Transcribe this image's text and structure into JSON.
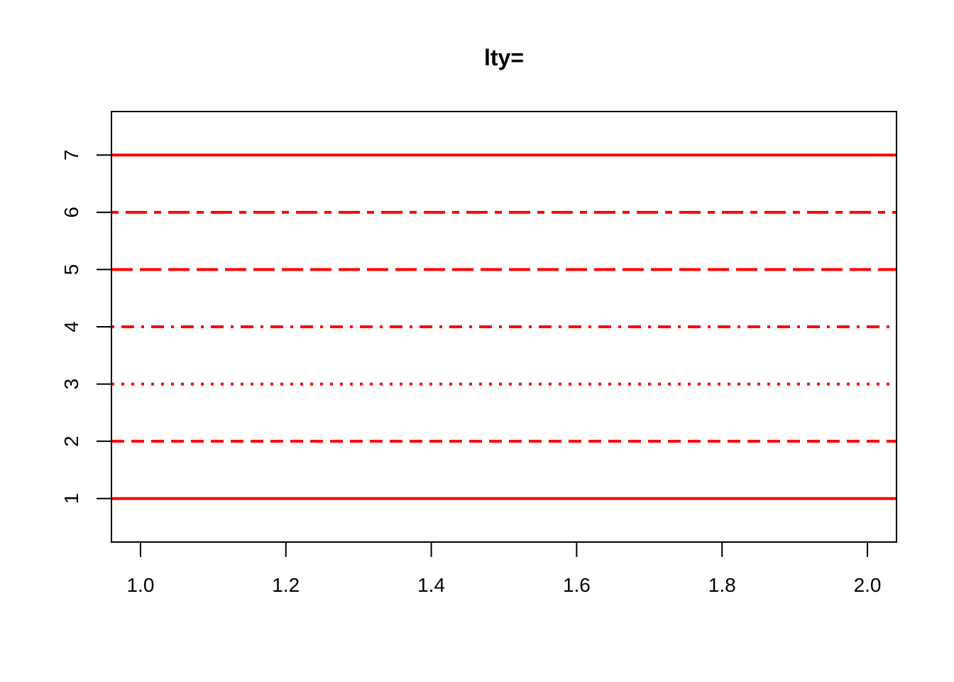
{
  "chart_data": {
    "type": "line",
    "title": "lty=",
    "xlabel": "",
    "ylabel": "",
    "xlim": [
      0.96,
      2.04
    ],
    "ylim": [
      0.24,
      7.76
    ],
    "x_ticks": [
      1.0,
      1.2,
      1.4,
      1.6,
      1.8,
      2.0
    ],
    "x_tick_labels": [
      "1.0",
      "1.2",
      "1.4",
      "1.6",
      "1.8",
      "2.0"
    ],
    "y_ticks": [
      1,
      2,
      3,
      4,
      5,
      6,
      7
    ],
    "y_tick_labels": [
      "1",
      "2",
      "3",
      "4",
      "5",
      "6",
      "7"
    ],
    "grid": false,
    "series_color": "#ff0000",
    "series": [
      {
        "lty": 1,
        "dash": "solid",
        "x": [
          0.96,
          2.04
        ],
        "y": [
          1,
          1
        ]
      },
      {
        "lty": 2,
        "dash": "dashed",
        "x": [
          0.96,
          2.04
        ],
        "y": [
          2,
          2
        ]
      },
      {
        "lty": 3,
        "dash": "dotted",
        "x": [
          0.96,
          2.04
        ],
        "y": [
          3,
          3
        ]
      },
      {
        "lty": 4,
        "dash": "dotdash",
        "x": [
          0.96,
          2.04
        ],
        "y": [
          4,
          4
        ]
      },
      {
        "lty": 5,
        "dash": "longdash",
        "x": [
          0.96,
          2.04
        ],
        "y": [
          5,
          5
        ]
      },
      {
        "lty": 6,
        "dash": "twodash",
        "x": [
          0.96,
          2.04
        ],
        "y": [
          6,
          6
        ]
      },
      {
        "lty": 7,
        "dash": "solid",
        "x": [
          0.96,
          2.04
        ],
        "y": [
          7,
          7
        ]
      }
    ]
  }
}
